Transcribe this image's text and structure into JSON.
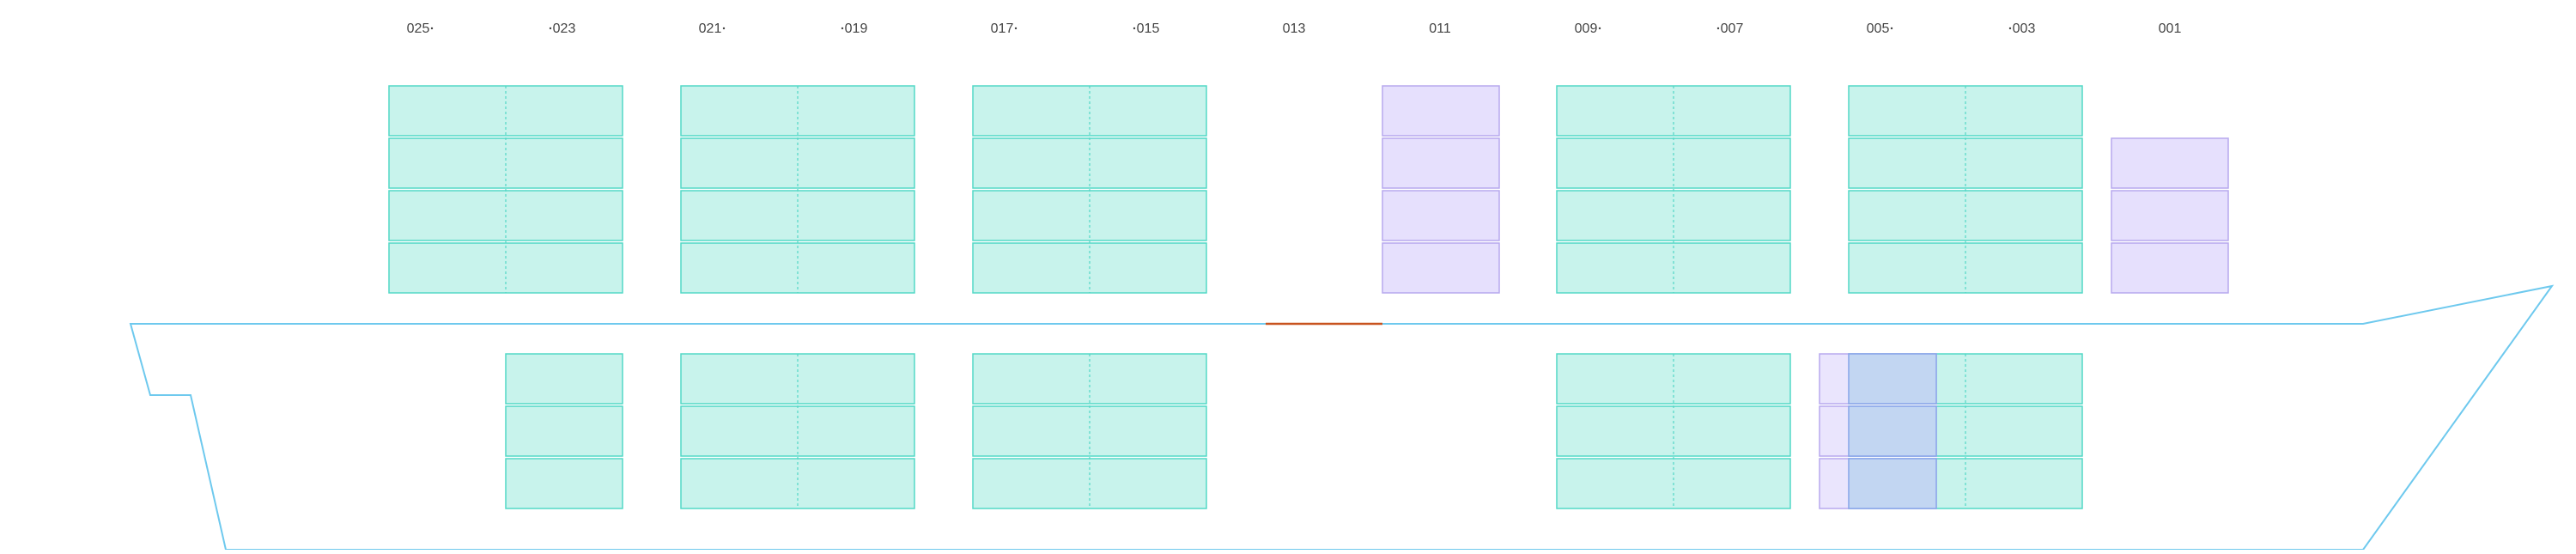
{
  "bay_labels": [
    "025",
    "023",
    "021",
    "019",
    "017",
    "015",
    "013",
    "011",
    "009",
    "007",
    "005",
    "003",
    "001"
  ],
  "colors": {
    "background": "#ffffff",
    "hull_outline": "#6ec9ee",
    "deck_highlight": "#c8531f",
    "teal_fill": "#c8f3ec",
    "teal_stroke": "#52d8c6",
    "purple_fill": "#e6e0fd",
    "purple_stroke": "#b7a8ee",
    "overlap_fill": "#c2d6f2",
    "overlap_stroke": "#8aa6ea",
    "label_text": "#444444"
  }
}
